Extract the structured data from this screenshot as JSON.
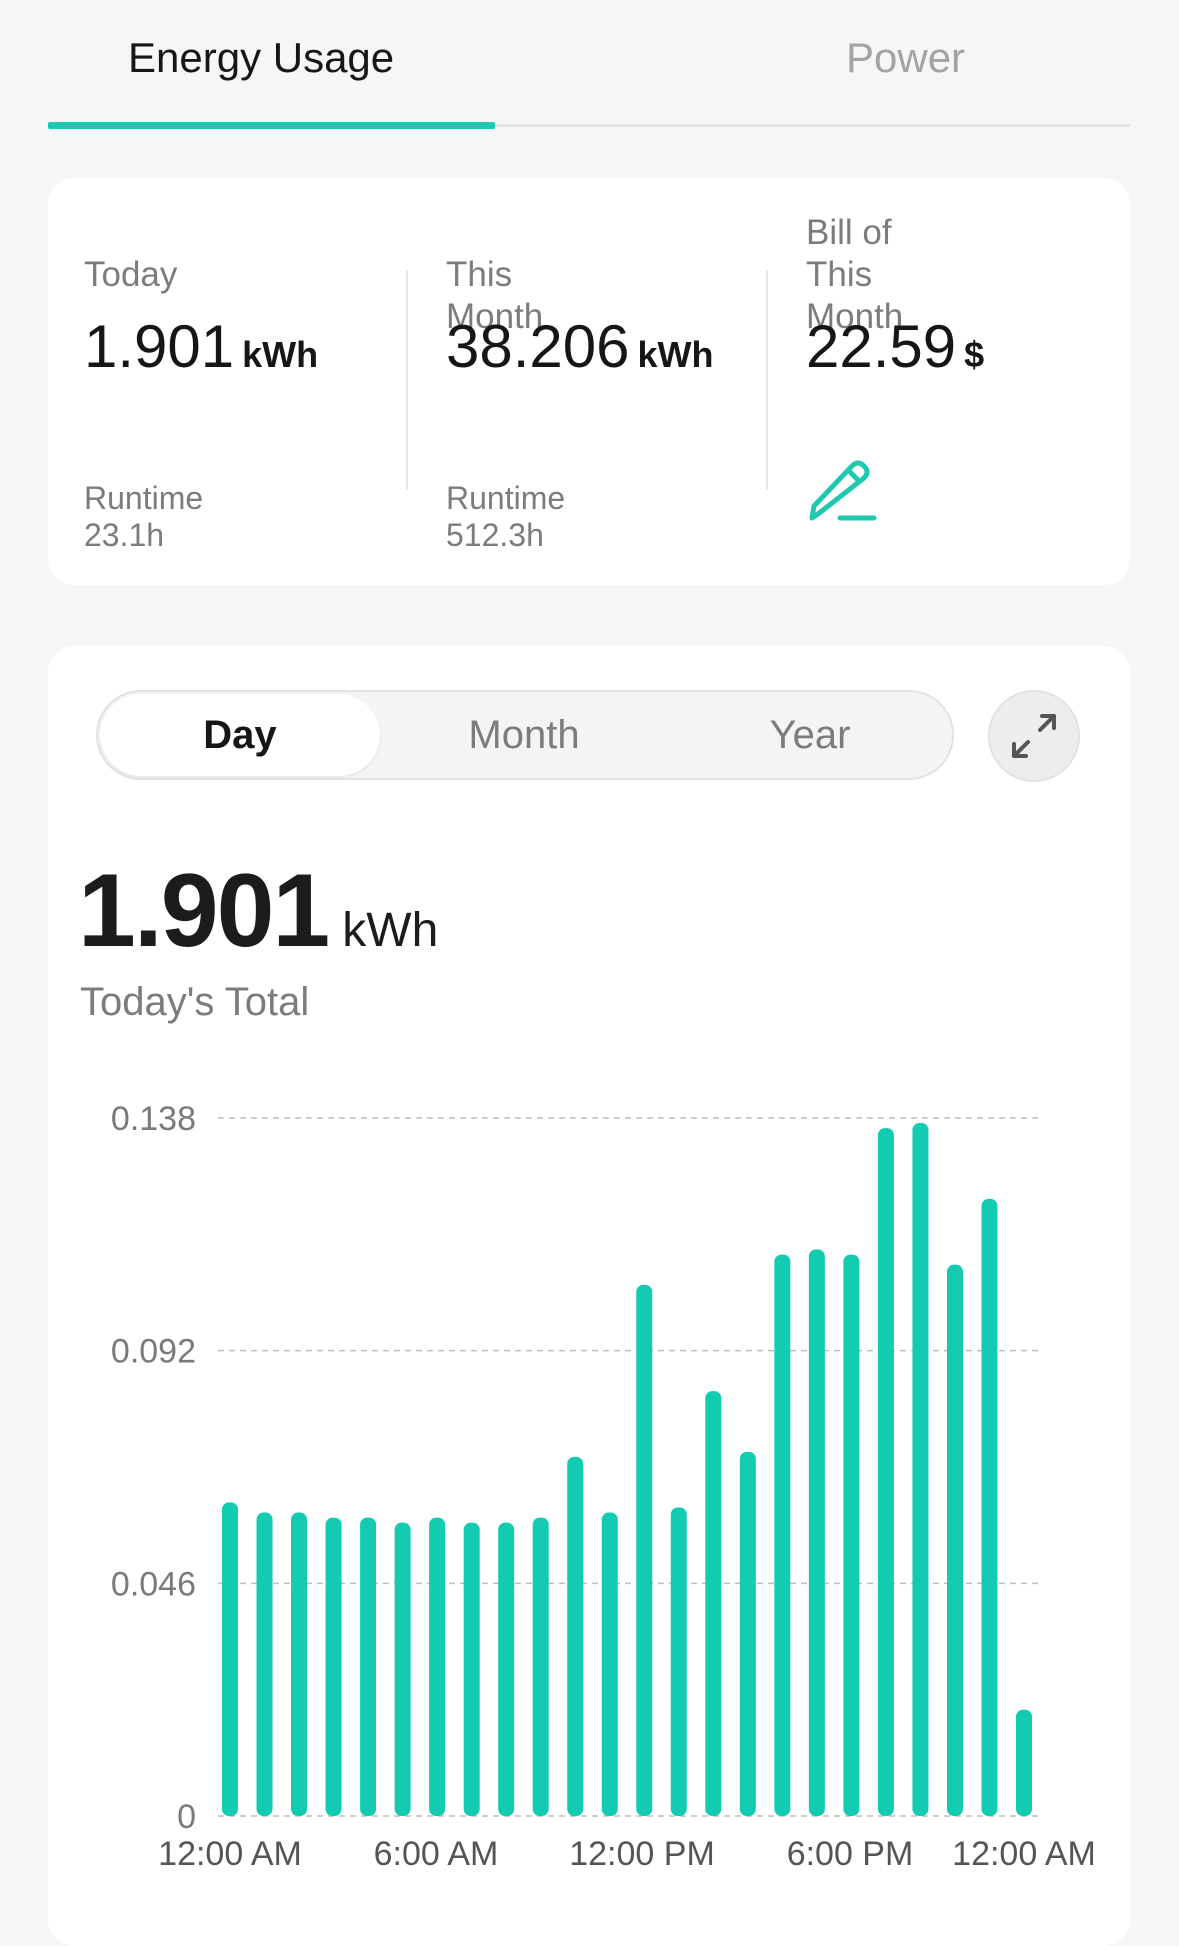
{
  "tabs": {
    "energy_usage": "Energy Usage",
    "power": "Power"
  },
  "summary": {
    "today": {
      "label": "Today",
      "value": "1.901",
      "unit": "kWh",
      "runtime": "Runtime 23.1h"
    },
    "this_month": {
      "label": "This Month",
      "value": "38.206",
      "unit": "kWh",
      "runtime": "Runtime 512.3h"
    },
    "bill": {
      "label_line1": "Bill of This",
      "label_line2": "Month",
      "value": "22.59",
      "unit": "$",
      "edit_icon": "pencil-edit-icon"
    }
  },
  "range_selector": {
    "day": "Day",
    "month": "Month",
    "year": "Year",
    "selected": "Day",
    "expand_icon": "expand-icon"
  },
  "total": {
    "value": "1.901",
    "unit": "kWh",
    "caption": "Today's Total"
  },
  "colors": {
    "accent": "#1ec9b0",
    "bar": "#12cbb1"
  },
  "chart_data": {
    "type": "bar",
    "y_ticks": [
      "0.138",
      "0.092",
      "0.046",
      "0"
    ],
    "ylim": [
      0,
      0.138
    ],
    "x_tick_labels": [
      "12:00 AM",
      "6:00 AM",
      "12:00 PM",
      "6:00 PM",
      "12:00 AM"
    ],
    "grid": true,
    "series": [
      {
        "values": [
          0.062,
          0.06,
          0.06,
          0.059,
          0.059,
          0.058,
          0.059,
          0.058,
          0.058,
          0.059,
          0.071,
          0.06,
          0.105,
          0.061,
          0.084,
          0.072,
          0.111,
          0.112,
          0.111,
          0.136,
          0.137,
          0.109,
          0.122,
          0.021
        ]
      }
    ]
  }
}
